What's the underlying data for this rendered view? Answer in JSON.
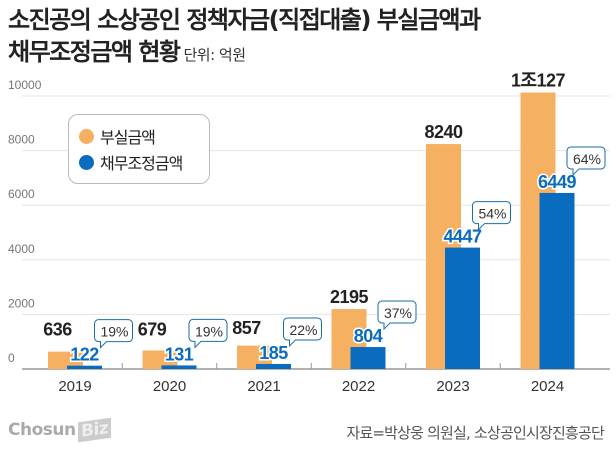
{
  "title": {
    "line1": "소진공의 소상공인 정책자금(직접대출) 부실금액과",
    "line2": "채무조정금액 현황",
    "unit": "단위: 억원"
  },
  "source": "자료=박상웅 의원실, 소상공인시장진흥공단",
  "logo": {
    "text": "Chosun",
    "biz": "Biz"
  },
  "chart_data": {
    "type": "bar",
    "title": "소진공의 소상공인 정책자금(직접대출) 부실금액과 채무조정금액 현황",
    "ylabel": "단위: 억원",
    "ylim": [
      0,
      10000
    ],
    "yticks": [
      0,
      2000,
      4000,
      6000,
      8000,
      10000
    ],
    "ytick_labels": [
      "0",
      "2000",
      "4000",
      "6000",
      "8000",
      "10000"
    ],
    "grid": true,
    "legend_position": "top-left",
    "categories": [
      "2019",
      "2020",
      "2021",
      "2022",
      "2023",
      "2024"
    ],
    "series": [
      {
        "name": "부실금액",
        "color": "#F5B062",
        "values": [
          636,
          679,
          857,
          2195,
          8240,
          10127
        ],
        "labels": [
          "636",
          "679",
          "857",
          "2195",
          "8240",
          "1조127"
        ]
      },
      {
        "name": "채무조정금액",
        "color": "#0A6CBF",
        "values": [
          122,
          131,
          185,
          804,
          4447,
          6449
        ],
        "labels": [
          "122",
          "131",
          "185",
          "804",
          "4447",
          "6449"
        ]
      }
    ],
    "ratio_labels": [
      "19%",
      "19%",
      "22%",
      "37%",
      "54%",
      "64%"
    ]
  }
}
